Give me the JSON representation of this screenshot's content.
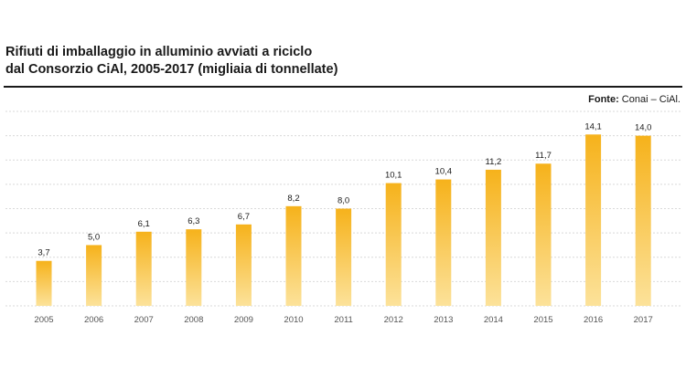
{
  "header": {
    "title_line1": "Rifiuti di imballaggio in alluminio avviati a riciclo",
    "title_line2": "dal Consorzio CiAl, 2005-2017 (migliaia di tonnellate)",
    "source_label": "Fonte:",
    "source_value": "Conai – CiAl."
  },
  "colors": {
    "bar_top": "#F6B21B",
    "bar_bottom": "#FCE29A",
    "gridline": "#d9d9d9"
  },
  "chart_data": {
    "type": "bar",
    "title": "Rifiuti di imballaggio in alluminio avviati a riciclo dal Consorzio CiAl, 2005-2017 (migliaia di tonnellate)",
    "categories": [
      "2005",
      "2006",
      "2007",
      "2008",
      "2009",
      "2010",
      "2011",
      "2012",
      "2013",
      "2014",
      "2015",
      "2016",
      "2017"
    ],
    "values": [
      3.7,
      5.0,
      6.1,
      6.3,
      6.7,
      8.2,
      8.0,
      10.1,
      10.4,
      11.2,
      11.7,
      14.1,
      14.0
    ],
    "value_labels": [
      "3,7",
      "5,0",
      "6,1",
      "6,3",
      "6,7",
      "8,2",
      "8,0",
      "10,1",
      "10,4",
      "11,2",
      "11,7",
      "14,1",
      "14,0"
    ],
    "ylim": [
      0,
      16
    ],
    "grid": true,
    "legend": "none"
  }
}
